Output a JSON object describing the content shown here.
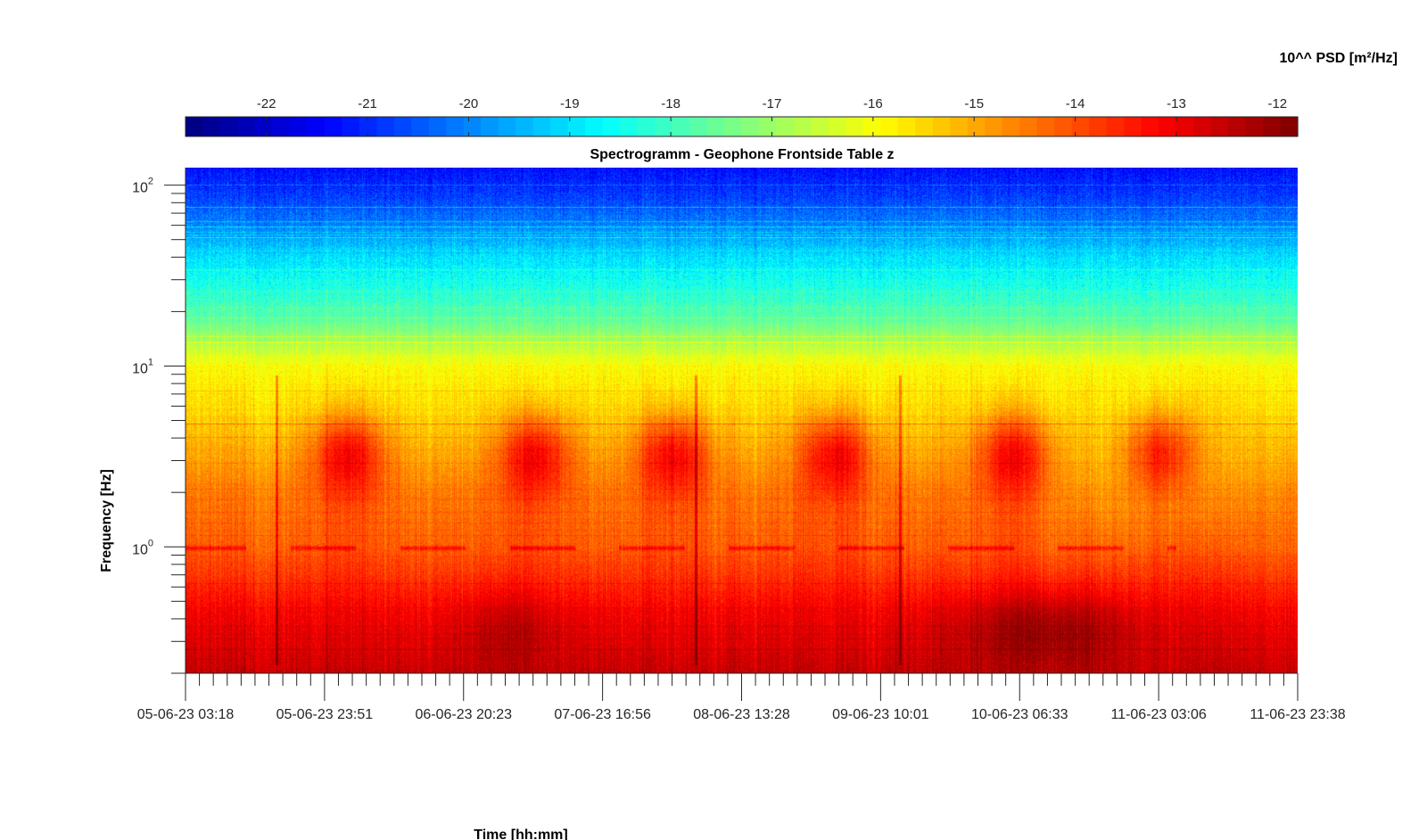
{
  "chart_data": {
    "type": "heatmap",
    "title": "Spectrogramm - Geophone Frontside Table z",
    "xlabel": "Time [hh:mm]",
    "ylabel": "Frequency [Hz]",
    "y_scale": "log",
    "ylim": [
      0.2,
      125
    ],
    "y_ticks": [
      {
        "value": 1,
        "base": "10",
        "exp": "0"
      },
      {
        "value": 10,
        "base": "10",
        "exp": "1"
      },
      {
        "value": 100,
        "base": "10",
        "exp": "2"
      }
    ],
    "x_tick_labels": [
      "05-06-23 03:18",
      "05-06-23 23:51",
      "06-06-23 20:23",
      "07-06-23 16:56",
      "08-06-23 13:28",
      "09-06-23 10:01",
      "10-06-23 06:33",
      "11-06-23 03:06",
      "11-06-23 23:38"
    ],
    "xlim": [
      "05-06-23 03:18",
      "11-06-23 23:38"
    ],
    "colorbar": {
      "label": "10^^ PSD [m²/Hz]",
      "range": [
        -22.8,
        -11.8
      ],
      "ticks": [
        -22,
        -21,
        -20,
        -19,
        -18,
        -17,
        -16,
        -15,
        -14,
        -13,
        -12
      ],
      "tick_labels": [
        "-22",
        "-21",
        "-20",
        "-19",
        "-18",
        "-17",
        "-16",
        "-15",
        "-14",
        "-13",
        "-12"
      ],
      "colormap": "jet",
      "placement": "top"
    },
    "features": {
      "daily_activity_peaks_days": [
        1.0,
        2.15,
        3.0,
        4.0,
        5.1,
        6.0
      ],
      "line_0_98hz": "intermittent horizontal line near 0.98 Hz",
      "lowest_band_max_log_psd": -12.3,
      "top_band_log_psd": -21.3
    }
  }
}
